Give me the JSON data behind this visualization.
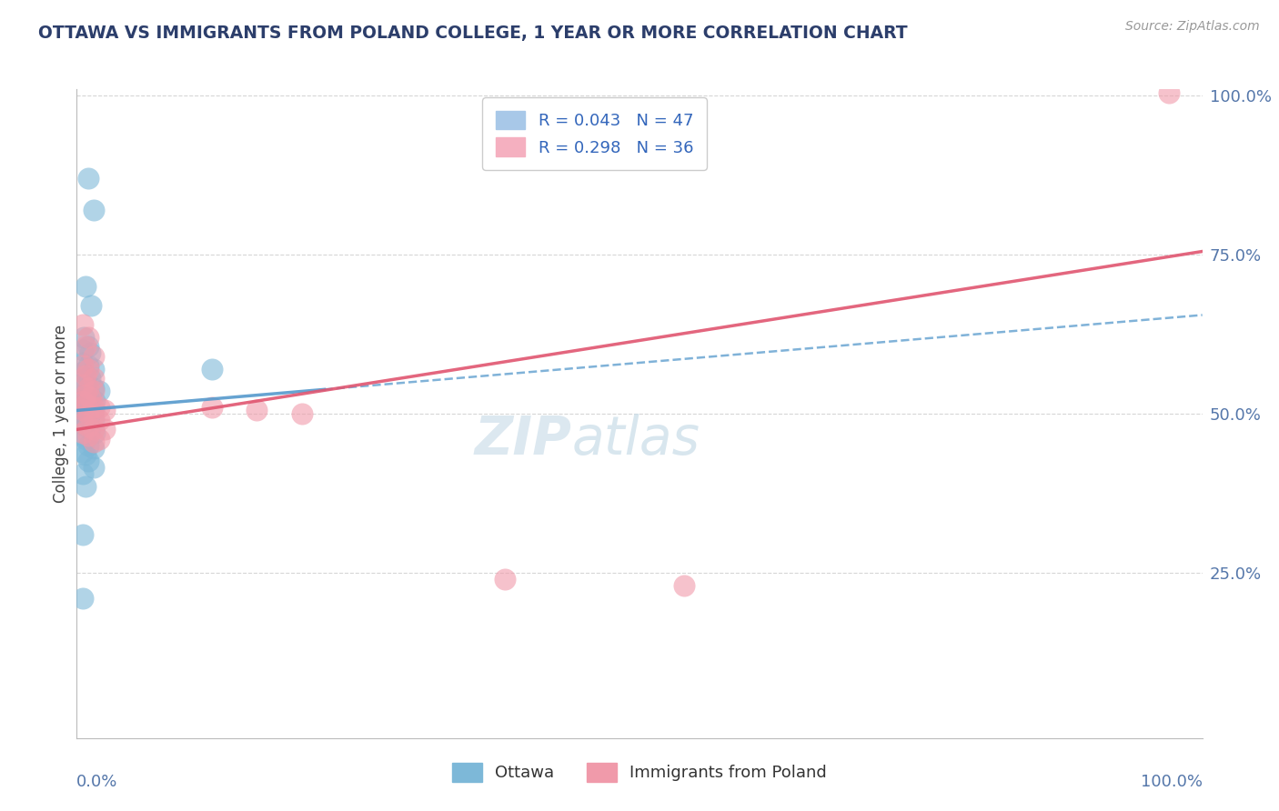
{
  "title": "OTTAWA VS IMMIGRANTS FROM POLAND COLLEGE, 1 YEAR OR MORE CORRELATION CHART",
  "source": "Source: ZipAtlas.com",
  "ylabel": "College, 1 year or more",
  "xlim": [
    0.0,
    1.0
  ],
  "ylim": [
    0.0,
    1.0
  ],
  "ytick_positions": [
    0.25,
    0.5,
    0.75,
    1.0
  ],
  "ytick_labels": [
    "25.0%",
    "50.0%",
    "75.0%",
    "100.0%"
  ],
  "ottawa_color": "#7db8d8",
  "poland_color": "#f09aaa",
  "ottawa_line_color": "#5599cc",
  "poland_line_color": "#e05570",
  "background_color": "#ffffff",
  "grid_color": "#cccccc",
  "title_color": "#2c3e6b",
  "source_color": "#999999",
  "axis_label_color": "#5577aa",
  "watermark_color": "#dce8f0",
  "ottawa_R": 0.043,
  "poland_R": 0.298,
  "ottawa_N": 47,
  "poland_N": 36,
  "ottawa_line": [
    [
      0.0,
      0.505
    ],
    [
      1.0,
      0.655
    ]
  ],
  "poland_line": [
    [
      0.0,
      0.475
    ],
    [
      1.0,
      0.755
    ]
  ],
  "ottawa_dots": [
    [
      0.01,
      0.87
    ],
    [
      0.015,
      0.82
    ],
    [
      0.008,
      0.7
    ],
    [
      0.013,
      0.67
    ],
    [
      0.006,
      0.62
    ],
    [
      0.01,
      0.605
    ],
    [
      0.005,
      0.6
    ],
    [
      0.012,
      0.595
    ],
    [
      0.005,
      0.58
    ],
    [
      0.01,
      0.575
    ],
    [
      0.015,
      0.57
    ],
    [
      0.005,
      0.565
    ],
    [
      0.008,
      0.555
    ],
    [
      0.012,
      0.555
    ],
    [
      0.005,
      0.545
    ],
    [
      0.01,
      0.54
    ],
    [
      0.015,
      0.54
    ],
    [
      0.02,
      0.535
    ],
    [
      0.005,
      0.53
    ],
    [
      0.008,
      0.525
    ],
    [
      0.012,
      0.52
    ],
    [
      0.016,
      0.52
    ],
    [
      0.005,
      0.515
    ],
    [
      0.008,
      0.51
    ],
    [
      0.01,
      0.51
    ],
    [
      0.015,
      0.505
    ],
    [
      0.005,
      0.5
    ],
    [
      0.008,
      0.5
    ],
    [
      0.01,
      0.495
    ],
    [
      0.015,
      0.49
    ],
    [
      0.005,
      0.485
    ],
    [
      0.008,
      0.48
    ],
    [
      0.012,
      0.475
    ],
    [
      0.016,
      0.47
    ],
    [
      0.005,
      0.465
    ],
    [
      0.008,
      0.46
    ],
    [
      0.01,
      0.45
    ],
    [
      0.015,
      0.445
    ],
    [
      0.005,
      0.44
    ],
    [
      0.008,
      0.435
    ],
    [
      0.01,
      0.425
    ],
    [
      0.015,
      0.415
    ],
    [
      0.005,
      0.405
    ],
    [
      0.008,
      0.385
    ],
    [
      0.005,
      0.31
    ],
    [
      0.12,
      0.57
    ],
    [
      0.005,
      0.21
    ]
  ],
  "poland_dots": [
    [
      0.005,
      0.64
    ],
    [
      0.01,
      0.62
    ],
    [
      0.008,
      0.605
    ],
    [
      0.015,
      0.59
    ],
    [
      0.005,
      0.575
    ],
    [
      0.01,
      0.57
    ],
    [
      0.008,
      0.56
    ],
    [
      0.015,
      0.555
    ],
    [
      0.005,
      0.545
    ],
    [
      0.01,
      0.54
    ],
    [
      0.015,
      0.535
    ],
    [
      0.008,
      0.53
    ],
    [
      0.012,
      0.525
    ],
    [
      0.005,
      0.52
    ],
    [
      0.008,
      0.515
    ],
    [
      0.015,
      0.51
    ],
    [
      0.02,
      0.51
    ],
    [
      0.025,
      0.505
    ],
    [
      0.005,
      0.505
    ],
    [
      0.01,
      0.5
    ],
    [
      0.015,
      0.495
    ],
    [
      0.02,
      0.49
    ],
    [
      0.005,
      0.485
    ],
    [
      0.01,
      0.48
    ],
    [
      0.015,
      0.475
    ],
    [
      0.025,
      0.475
    ],
    [
      0.005,
      0.47
    ],
    [
      0.01,
      0.465
    ],
    [
      0.02,
      0.46
    ],
    [
      0.015,
      0.455
    ],
    [
      0.12,
      0.51
    ],
    [
      0.16,
      0.505
    ],
    [
      0.2,
      0.5
    ],
    [
      0.38,
      0.24
    ],
    [
      0.54,
      0.23
    ],
    [
      0.97,
      1.005
    ]
  ]
}
